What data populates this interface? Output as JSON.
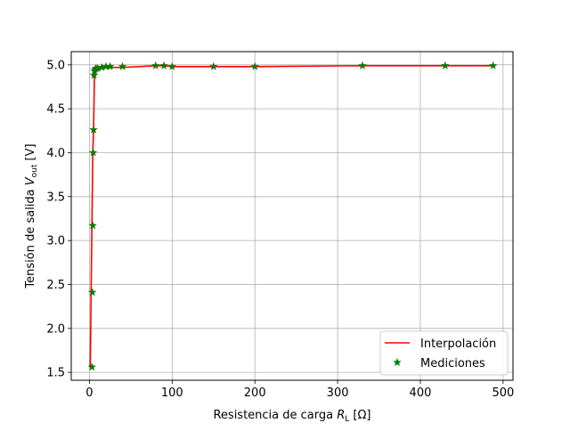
{
  "chart_data": {
    "type": "line",
    "title": "",
    "xlabel_prefix": "Resistencia de carga ",
    "xlabel_symbol": "R",
    "xlabel_sub": "L",
    "xlabel_unit": " [Ω]",
    "ylabel_prefix": "Tensión de salida ",
    "ylabel_symbol": "V",
    "ylabel_sub": "out",
    "ylabel_unit": " [V]",
    "xlim": [
      -22,
      512
    ],
    "ylim": [
      1.41,
      5.15
    ],
    "xticks": [
      0,
      100,
      200,
      300,
      400,
      500
    ],
    "yticks": [
      1.5,
      2.0,
      2.5,
      3.0,
      3.5,
      4.0,
      4.5,
      5.0
    ],
    "grid": true,
    "legend_position": "lower-right",
    "series": [
      {
        "name": "Interpolación",
        "kind": "line",
        "color": "#ff0000",
        "x": [
          1,
          2,
          3,
          4,
          5,
          6,
          7,
          8,
          10,
          15,
          20,
          25,
          40,
          80,
          90,
          100,
          150,
          200,
          330,
          430,
          490
        ],
        "y": [
          1.56,
          2.41,
          3.17,
          4.0,
          4.26,
          4.88,
          4.93,
          4.95,
          4.96,
          4.97,
          4.97,
          4.97,
          4.97,
          4.99,
          4.99,
          4.98,
          4.98,
          4.98,
          4.99,
          4.99,
          4.99
        ]
      },
      {
        "name": "Mediciones",
        "kind": "scatter",
        "marker": "star",
        "color": "#008000",
        "x": [
          3,
          3.5,
          4,
          4.5,
          5,
          5.5,
          6,
          7,
          8,
          10,
          15,
          20,
          25,
          40,
          80,
          90,
          100,
          150,
          200,
          330,
          430,
          488
        ],
        "y": [
          1.56,
          2.41,
          3.17,
          4.0,
          4.26,
          4.88,
          4.93,
          4.95,
          4.96,
          4.96,
          4.97,
          4.98,
          4.98,
          4.98,
          4.99,
          4.99,
          4.98,
          4.98,
          4.98,
          4.99,
          4.99,
          4.99
        ]
      }
    ]
  }
}
